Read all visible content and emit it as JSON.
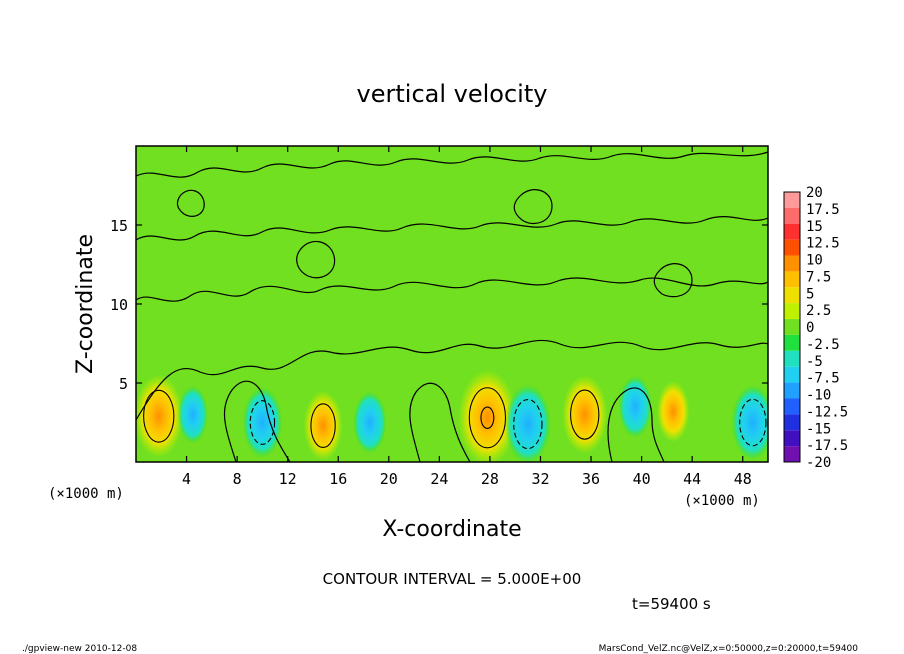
{
  "chart_data": {
    "type": "heatmap",
    "title": "vertical velocity",
    "xlabel": "X-coordinate",
    "ylabel": "Z-coordinate",
    "x_units": "(×1000 m)",
    "y_units": "(×1000 m)",
    "xlim": [
      0,
      50
    ],
    "ylim": [
      0,
      20
    ],
    "x_ticks": [
      "4",
      "8",
      "12",
      "16",
      "20",
      "24",
      "28",
      "32",
      "36",
      "40",
      "44",
      "48"
    ],
    "y_ticks": [
      "5",
      "10",
      "15"
    ],
    "contour_interval": "CONTOUR INTERVAL = 5.000E+00",
    "time": "t=59400 s",
    "footer_left": "./gpview-new   2010-12-08",
    "footer_right": "MarsCond_VelZ.nc@VelZ,x=0:50000,z=0:20000,t=59400",
    "colorbar": {
      "labels": [
        "20",
        "17.5",
        "15",
        "12.5",
        "10",
        "7.5",
        "5",
        "2.5",
        "0",
        "-2.5",
        "-5",
        "-7.5",
        "-10",
        "-12.5",
        "-15",
        "-17.5",
        "-20"
      ],
      "colors": [
        "#ff9a9a",
        "#ff6a6a",
        "#ff3030",
        "#ff5000",
        "#ff9000",
        "#ffc000",
        "#f0e000",
        "#bef000",
        "#70e020",
        "#20e040",
        "#20e0c0",
        "#20d0f0",
        "#20a0ff",
        "#2060ff",
        "#2030e0",
        "#4010c0",
        "#7010b0"
      ]
    },
    "features": [
      {
        "x": 1.8,
        "z": 2.9,
        "w": 9,
        "kind": "updraft"
      },
      {
        "x": 4.5,
        "z": 3.0,
        "w": -3,
        "kind": "downdraft"
      },
      {
        "x": 10.0,
        "z": 2.5,
        "w": -6,
        "kind": "downdraft"
      },
      {
        "x": 14.8,
        "z": 2.3,
        "w": 6,
        "kind": "updraft"
      },
      {
        "x": 18.5,
        "z": 2.5,
        "w": -4,
        "kind": "downdraft"
      },
      {
        "x": 27.8,
        "z": 2.8,
        "w": 12,
        "kind": "updraft"
      },
      {
        "x": 31.0,
        "z": 2.4,
        "w": -8,
        "kind": "downdraft"
      },
      {
        "x": 35.5,
        "z": 3.0,
        "w": 8,
        "kind": "updraft"
      },
      {
        "x": 39.5,
        "z": 3.5,
        "w": -4,
        "kind": "downdraft"
      },
      {
        "x": 42.5,
        "z": 3.2,
        "w": 4,
        "kind": "updraft"
      },
      {
        "x": 48.8,
        "z": 2.5,
        "w": -7,
        "kind": "downdraft"
      }
    ]
  }
}
